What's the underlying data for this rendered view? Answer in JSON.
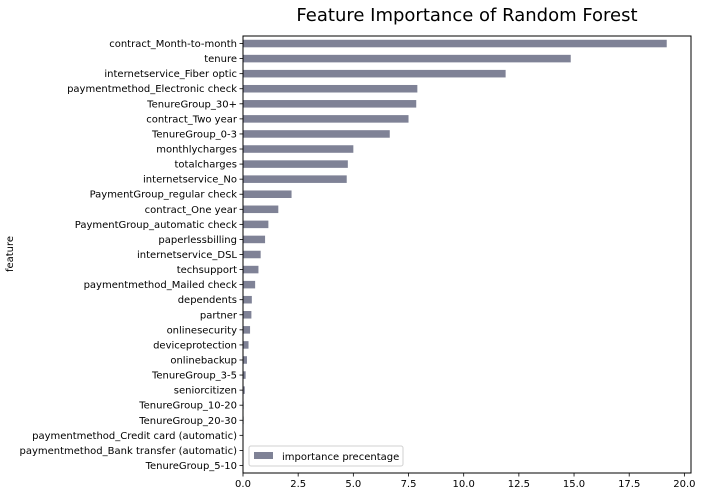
{
  "chart_data": {
    "type": "bar",
    "orientation": "horizontal",
    "title": "Feature Importance of Random Forest",
    "xlabel": "",
    "ylabel": "feature",
    "xlim": [
      0,
      20.3
    ],
    "xticks": [
      "0.0",
      "2.5",
      "5.0",
      "7.5",
      "10.0",
      "12.5",
      "15.0",
      "17.5",
      "20.0"
    ],
    "legend": {
      "position": "lower-left",
      "entries": [
        "importance precentage"
      ]
    },
    "grid": false,
    "bar_color": "#7f8296",
    "categories": [
      "contract_Month-to-month",
      "tenure",
      "internetservice_Fiber optic",
      "paymentmethod_Electronic check",
      "TenureGroup_30+",
      "contract_Two year",
      "TenureGroup_0-3",
      "monthlycharges",
      "totalcharges",
      "internetservice_No",
      "PaymentGroup_regular check",
      "contract_One year",
      "PaymentGroup_automatic check",
      "paperlessbilling",
      "internetservice_DSL",
      "techsupport",
      "paymentmethod_Mailed check",
      "dependents",
      "partner",
      "onlinesecurity",
      "deviceprotection",
      "onlinebackup",
      "TenureGroup_3-5",
      "seniorcitizen",
      "TenureGroup_10-20",
      "TenureGroup_20-30",
      "paymentmethod_Credit card (automatic)",
      "paymentmethod_Bank transfer (automatic)",
      "TenureGroup_5-10"
    ],
    "series": [
      {
        "name": "importance precentage",
        "values": [
          19.2,
          14.85,
          11.9,
          7.9,
          7.85,
          7.5,
          6.65,
          5.0,
          4.75,
          4.7,
          2.2,
          1.6,
          1.15,
          1.0,
          0.8,
          0.7,
          0.55,
          0.4,
          0.38,
          0.32,
          0.25,
          0.18,
          0.12,
          0.08,
          0.03,
          0.03,
          0.02,
          0.02,
          0.01
        ]
      }
    ]
  }
}
